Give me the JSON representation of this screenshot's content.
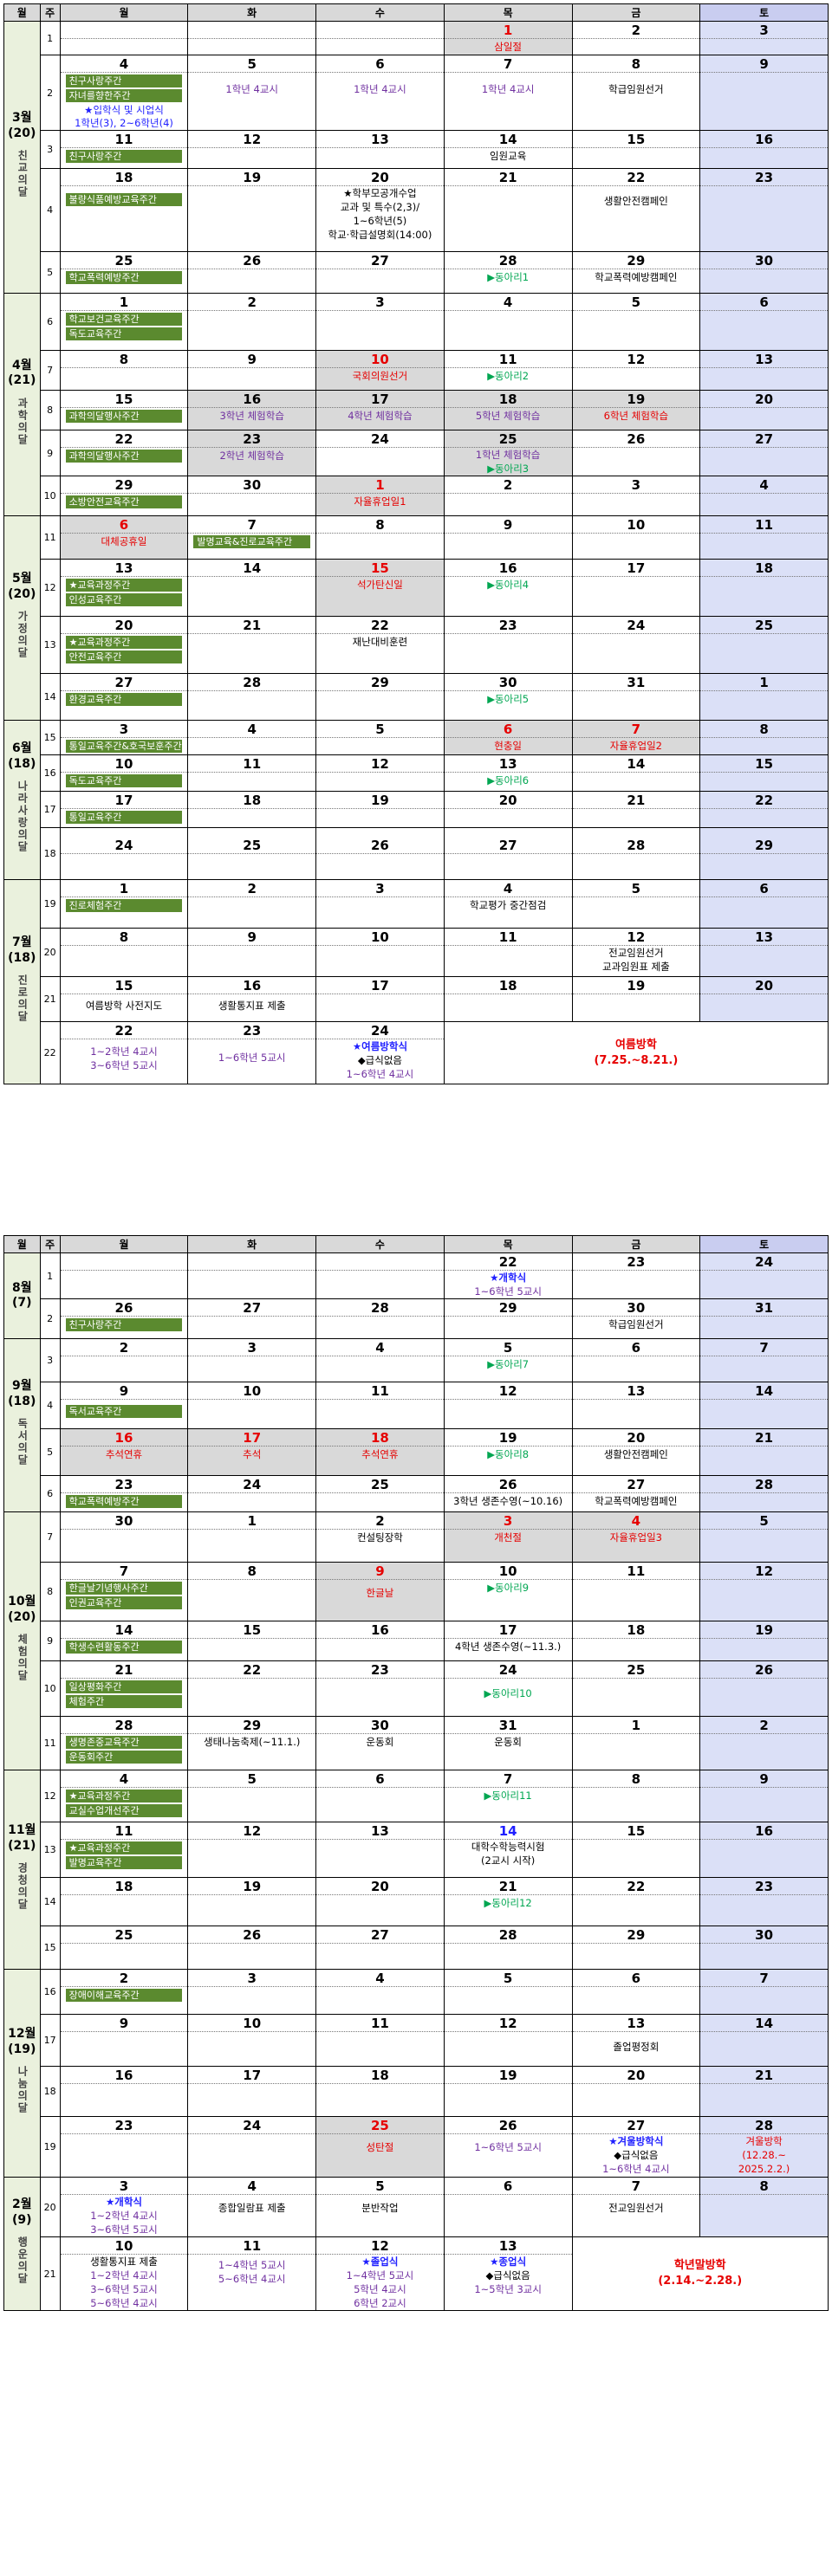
{
  "headers": [
    "월",
    "주",
    "월",
    "화",
    "수",
    "목",
    "금",
    "토"
  ],
  "sem1": {
    "mar": {
      "name": "3월",
      "count": "(20)",
      "theme": "친교의달"
    },
    "apr": {
      "name": "4월",
      "count": "(21)",
      "theme": "과학의달"
    },
    "may": {
      "name": "5월",
      "count": "(20)",
      "theme": "가정의달"
    },
    "jun": {
      "name": "6월",
      "count": "(18)",
      "theme": "나라사랑의달"
    },
    "jul": {
      "name": "7월",
      "count": "(18)",
      "theme": "진로의달"
    },
    "w1": {
      "n": "1",
      "d": [
        "",
        "",
        "",
        "1",
        "2",
        "3"
      ],
      "thu": "삼일절"
    },
    "w2": {
      "n": "2",
      "d": [
        "4",
        "5",
        "6",
        "7",
        "8",
        "9"
      ],
      "bar1": "친구사랑주간",
      "bar2": "자녀를향한주간",
      "mon1": "★입학식 및 시업식",
      "mon2": "1학년(3), 2~6학년(4)",
      "tue": "1학년 4교시",
      "wed": "1학년 4교시",
      "thu": "1학년 4교시",
      "fri": "학급임원선거"
    },
    "w3": {
      "n": "3",
      "d": [
        "11",
        "12",
        "13",
        "14",
        "15",
        "16"
      ],
      "bar1": "친구사랑주간",
      "thu": "임원교육"
    },
    "w4": {
      "n": "4",
      "d": [
        "18",
        "19",
        "20",
        "21",
        "22",
        "23"
      ],
      "bar1": "불량식품예방교육주간",
      "wed1": "★학부모공개수업",
      "wed2": "교과 및 특수(2,3)/",
      "wed3": "1~6학년(5)",
      "wed4": "학교·학급설명회(14:00)",
      "fri": "생활안전캠페인"
    },
    "w5": {
      "n": "5",
      "d": [
        "25",
        "26",
        "27",
        "28",
        "29",
        "30"
      ],
      "bar1": "학교폭력예방주간",
      "thu": "▶동아리1",
      "fri": "학교폭력예방캠페인"
    },
    "w6": {
      "n": "6",
      "d": [
        "1",
        "2",
        "3",
        "4",
        "5",
        "6"
      ],
      "bar1": "학교보건교육주간",
      "bar2": "독도교육주간"
    },
    "w7": {
      "n": "7",
      "d": [
        "8",
        "9",
        "10",
        "11",
        "12",
        "13"
      ],
      "wed": "국회의원선거",
      "thu": "▶동아리2"
    },
    "w8": {
      "n": "8",
      "d": [
        "15",
        "16",
        "17",
        "18",
        "19",
        "20"
      ],
      "bar1": "과학의달행사주간",
      "tue": "3학년 체험학습",
      "wed": "4학년 체험학습",
      "thu": "5학년 체험학습",
      "fri": "6학년 체험학습"
    },
    "w9": {
      "n": "9",
      "d": [
        "22",
        "23",
        "24",
        "25",
        "26",
        "27"
      ],
      "bar1": "과학의달행사주간",
      "tue": "2학년 체험학습",
      "thu1": "1학년 체험학습",
      "thu2": "▶동아리3"
    },
    "w10": {
      "n": "10",
      "d": [
        "29",
        "30",
        "1",
        "2",
        "3",
        "4"
      ],
      "bar1": "소방안전교육주간",
      "wed": "자율휴업일1"
    },
    "w11": {
      "n": "11",
      "d": [
        "6",
        "7",
        "8",
        "9",
        "10",
        "11"
      ],
      "mon": "대체공휴일",
      "bar1": "발명교육&진로교육주간"
    },
    "w12": {
      "n": "12",
      "d": [
        "13",
        "14",
        "15",
        "16",
        "17",
        "18"
      ],
      "bar1": "★교육과정주간",
      "bar2": "인성교육주간",
      "wed": "석가탄신일",
      "thu": "▶동아리4"
    },
    "w13": {
      "n": "13",
      "d": [
        "20",
        "21",
        "22",
        "23",
        "24",
        "25"
      ],
      "bar1": "★교육과정주간",
      "bar2": "안전교육주간",
      "wed": "재난대비훈련"
    },
    "w14": {
      "n": "14",
      "d": [
        "27",
        "28",
        "29",
        "30",
        "31",
        "1"
      ],
      "bar1": "환경교육주간",
      "thu": "▶동아리5"
    },
    "w15": {
      "n": "15",
      "d": [
        "3",
        "4",
        "5",
        "6",
        "7",
        "8"
      ],
      "bar1": "통일교육주간&호국보훈주간",
      "thu": "현충일",
      "fri": "자율휴업일2"
    },
    "w16": {
      "n": "16",
      "d": [
        "10",
        "11",
        "12",
        "13",
        "14",
        "15"
      ],
      "bar1": "독도교육주간",
      "thu": "▶동아리6"
    },
    "w17": {
      "n": "17",
      "d": [
        "17",
        "18",
        "19",
        "20",
        "21",
        "22"
      ],
      "bar1": "통일교육주간"
    },
    "w18": {
      "n": "18",
      "d": [
        "24",
        "25",
        "26",
        "27",
        "28",
        "29"
      ]
    },
    "w19": {
      "n": "19",
      "d": [
        "1",
        "2",
        "3",
        "4",
        "5",
        "6"
      ],
      "bar1": "진로체험주간",
      "thu": "학교평가 중간점검"
    },
    "w20": {
      "n": "20",
      "d": [
        "8",
        "9",
        "10",
        "11",
        "12",
        "13"
      ],
      "fri1": "전교임원선거",
      "fri2": "교과임원표 제출"
    },
    "w21": {
      "n": "21",
      "d": [
        "15",
        "16",
        "17",
        "18",
        "19",
        "20"
      ],
      "mon": "여름방학 사전지도",
      "tue": "생활통지표 제출"
    },
    "w22": {
      "n": "22",
      "d": [
        "22",
        "23",
        "24"
      ],
      "mon1": "1~2학년 4교시",
      "mon2": "3~6학년 5교시",
      "tue": "1~6학년 5교시",
      "wed1": "★여름방학식",
      "wed2": "◆급식없음",
      "wed3": "1~6학년 4교시",
      "vac1": "여름방학",
      "vac2": "(7.25.~8.21.)"
    }
  },
  "sem2": {
    "aug": {
      "name": "8월",
      "count": "(7)"
    },
    "sep": {
      "name": "9월",
      "count": "(18)",
      "theme": "독서의달"
    },
    "oct": {
      "name": "10월",
      "count": "(20)",
      "theme": "체험의달"
    },
    "nov": {
      "name": "11월",
      "count": "(21)",
      "theme": "경청의달"
    },
    "dec": {
      "name": "12월",
      "count": "(19)",
      "theme": "나눔의달"
    },
    "feb": {
      "name": "2월",
      "count": "(9)",
      "theme": "행운의달"
    },
    "w1": {
      "n": "1",
      "d": [
        "",
        "",
        "",
        "22",
        "23",
        "24"
      ],
      "thu1": "★개학식",
      "thu2": "1~6학년 5교시"
    },
    "w2": {
      "n": "2",
      "d": [
        "26",
        "27",
        "28",
        "29",
        "30",
        "31"
      ],
      "bar1": "친구사랑주간",
      "fri": "학급임원선거"
    },
    "w3": {
      "n": "3",
      "d": [
        "2",
        "3",
        "4",
        "5",
        "6",
        "7"
      ],
      "thu": "▶동아리7"
    },
    "w4": {
      "n": "4",
      "d": [
        "9",
        "10",
        "11",
        "12",
        "13",
        "14"
      ],
      "bar1": "독서교육주간"
    },
    "w5": {
      "n": "5",
      "d": [
        "16",
        "17",
        "18",
        "19",
        "20",
        "21"
      ],
      "mon": "추석연휴",
      "tue": "추석",
      "wed": "추석연휴",
      "thu": "▶동아리8",
      "fri": "생활안전캠페인"
    },
    "w6": {
      "n": "6",
      "d": [
        "23",
        "24",
        "25",
        "26",
        "27",
        "28"
      ],
      "bar1": "학교폭력예방주간",
      "thu": "3학년 생존수영(~10.16)",
      "fri": "학교폭력예방캠페인"
    },
    "w7": {
      "n": "7",
      "d": [
        "30",
        "1",
        "2",
        "3",
        "4",
        "5"
      ],
      "wed": "컨설팅장학",
      "thu": "개천절",
      "fri": "자율휴업일3"
    },
    "w8": {
      "n": "8",
      "d": [
        "7",
        "8",
        "9",
        "10",
        "11",
        "12"
      ],
      "bar1": "한글날기념행사주간",
      "bar2": "인권교육주간",
      "wed": "한글날",
      "thu": "▶동아리9"
    },
    "w9": {
      "n": "9",
      "d": [
        "14",
        "15",
        "16",
        "17",
        "18",
        "19"
      ],
      "bar1": "학생수련활동주간",
      "thu": "4학년 생존수영(~11.3.)"
    },
    "w10": {
      "n": "10",
      "d": [
        "21",
        "22",
        "23",
        "24",
        "25",
        "26"
      ],
      "bar1": "일상평화주간",
      "bar2": "체험주간",
      "thu": "▶동아리10"
    },
    "w11": {
      "n": "11",
      "d": [
        "28",
        "29",
        "30",
        "31",
        "1",
        "2"
      ],
      "bar1": "생명존중교육주간",
      "bar2": "운동회주간",
      "tue": "생태나눔축제(~11.1.)",
      "wed": "운동회",
      "thu": "운동회"
    },
    "w12": {
      "n": "12",
      "d": [
        "4",
        "5",
        "6",
        "7",
        "8",
        "9"
      ],
      "bar1": "★교육과정주간",
      "bar2": "교실수업개선주간",
      "thu": "▶동아리11"
    },
    "w13": {
      "n": "13",
      "d": [
        "11",
        "12",
        "13",
        "14",
        "15",
        "16"
      ],
      "bar1": "★교육과정주간",
      "bar2": "발명교육주간",
      "thu1": "대학수학능력시험",
      "thu2": "(2교시 시작)"
    },
    "w14": {
      "n": "14",
      "d": [
        "18",
        "19",
        "20",
        "21",
        "22",
        "23"
      ],
      "thu": "▶동아리12"
    },
    "w15": {
      "n": "15",
      "d": [
        "25",
        "26",
        "27",
        "28",
        "29",
        "30"
      ]
    },
    "w16": {
      "n": "16",
      "d": [
        "2",
        "3",
        "4",
        "5",
        "6",
        "7"
      ],
      "bar1": "장애이해교육주간"
    },
    "w17": {
      "n": "17",
      "d": [
        "9",
        "10",
        "11",
        "12",
        "13",
        "14"
      ],
      "fri": "졸업평정회"
    },
    "w18": {
      "n": "18",
      "d": [
        "16",
        "17",
        "18",
        "19",
        "20",
        "21"
      ]
    },
    "w19": {
      "n": "19",
      "d": [
        "23",
        "24",
        "25",
        "26",
        "27",
        "28"
      ],
      "wed": "성탄절",
      "thu": "1~6학년 5교시",
      "fri1": "★겨울방학식",
      "fri2": "◆급식없음",
      "fri3": "1~6학년 4교시",
      "sat1": "겨울방학",
      "sat2": "(12.28.~",
      "sat3": "2025.2.2.)"
    },
    "w20": {
      "n": "20",
      "d": [
        "3",
        "4",
        "5",
        "6",
        "7",
        "8"
      ],
      "mon1": "★개학식",
      "mon2": "1~2학년 4교시",
      "mon3": "3~6학년 5교시",
      "tue": "종합일람표 제출",
      "wed": "분반작업",
      "fri": "전교임원선거"
    },
    "w21": {
      "n": "21",
      "d": [
        "10",
        "11",
        "12",
        "13"
      ],
      "mon1": "생활통지표 제출",
      "mon2": "1~2학년 4교시",
      "mon3": "3~6학년 5교시",
      "mon4": "5~6학년 4교시",
      "tue1": "1~4학년 5교시",
      "tue2": "5~6학년 4교시",
      "wed1": "★졸업식",
      "wed2": "1~4학년 5교시",
      "wed3": "5학년 4교시",
      "wed4": "6학년 2교시",
      "thu1": "★종업식",
      "thu2": "◆급식없음",
      "thu3": "1~5학년 3교시",
      "vac1": "학년말방학",
      "vac2": "(2.14.~2.28.)"
    }
  }
}
